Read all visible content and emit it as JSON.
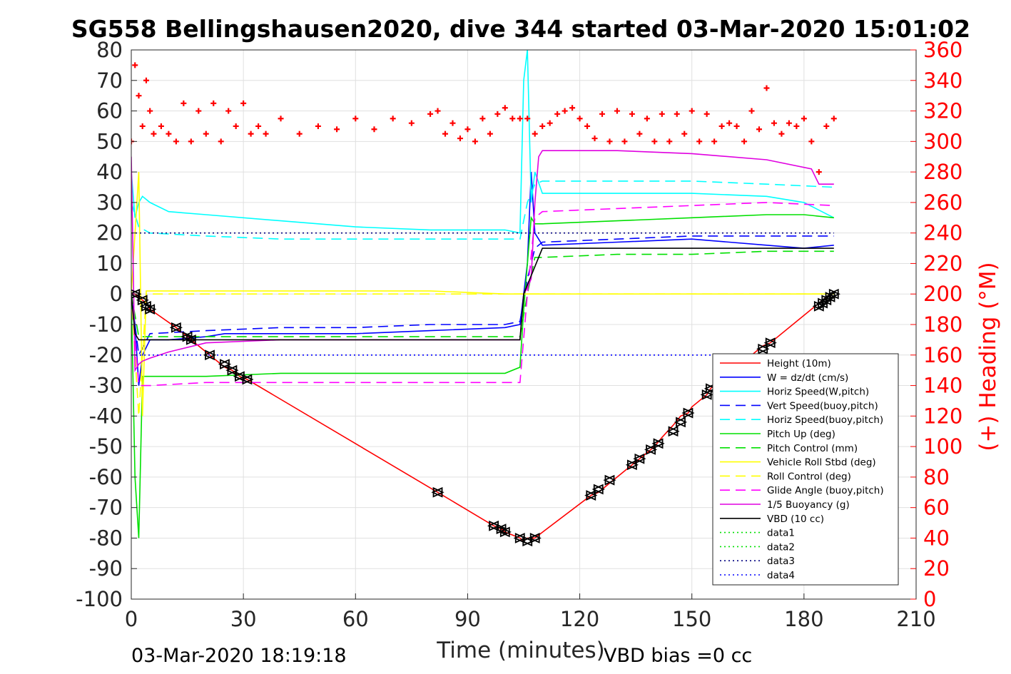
{
  "footer": {
    "timestamp": "03-Mar-2020 18:19:18",
    "vbd_bias": "VBD bias =0 cc"
  },
  "colors": {
    "heading": "#ff0000",
    "height": "#ff0000",
    "w": "#0000ff",
    "horiz_speed": "#00ffff",
    "pitch": "#00e000",
    "roll": "#ffff00",
    "glide": "#ff00ff",
    "buoyancy": "#e000e0",
    "vbd": "#000000",
    "data_green": "#00e000",
    "data_navy": "#000080",
    "data_blue": "#0000ff"
  },
  "chart_data": {
    "type": "line",
    "title": "SG558 Bellingshausen2020, dive 344 started 03-Mar-2020 15:01:02",
    "xlabel": "Time (minutes)",
    "ylabel": "",
    "y2label": "(+) Heading (°M)",
    "xlim": [
      0,
      210
    ],
    "ylim": [
      -100,
      80
    ],
    "y2lim": [
      0,
      360
    ],
    "xticks": [
      0,
      30,
      60,
      90,
      120,
      150,
      180,
      210
    ],
    "yticks": [
      80,
      70,
      60,
      50,
      40,
      30,
      20,
      10,
      0,
      -10,
      -20,
      -30,
      -40,
      -50,
      -60,
      -70,
      -80,
      -90,
      -100
    ],
    "y2ticks": [
      360,
      340,
      320,
      300,
      280,
      260,
      240,
      220,
      200,
      180,
      160,
      140,
      120,
      100,
      80,
      60,
      40,
      20,
      0
    ],
    "grid": true,
    "legend_position": "lower-right",
    "series": [
      {
        "name": "Height (10m)",
        "style": "solid",
        "color": "#ff0000",
        "x": [
          0,
          1,
          2,
          4,
          5,
          12,
          14,
          15,
          16,
          21,
          22,
          25,
          27,
          29,
          31,
          82,
          97,
          99,
          100,
          104,
          105,
          106,
          107,
          108,
          109,
          123,
          125,
          128,
          134,
          136,
          138,
          140,
          142,
          145,
          147,
          149,
          150,
          154,
          155,
          158,
          160,
          163,
          165,
          168,
          169,
          171,
          183,
          184,
          185,
          186,
          187,
          188
        ],
        "y": [
          0,
          0,
          -1,
          -3,
          -5,
          -11,
          -13,
          -14,
          -15,
          -20,
          -21,
          -24,
          -25,
          -27,
          -28,
          -65,
          -76,
          -77,
          -78,
          -80,
          -81,
          -80,
          -80,
          -80,
          -79,
          -66,
          -65,
          -62,
          -56,
          -54,
          -52,
          -50,
          -47,
          -43,
          -40,
          -39,
          -37,
          -33,
          -31,
          -28,
          -26,
          -23,
          -21,
          -18,
          -17,
          -16,
          -4,
          -3,
          -2,
          -1,
          0,
          0
        ]
      },
      {
        "name": "W = dz/dt (cm/s)",
        "style": "solid",
        "color": "#0000ff",
        "x": [
          0,
          1,
          2,
          3,
          5,
          10,
          20,
          25,
          30,
          40,
          60,
          80,
          100,
          104,
          105,
          106,
          107,
          108,
          110,
          130,
          150,
          170,
          180,
          188
        ],
        "y": [
          0,
          -10,
          -30,
          -20,
          -15,
          -15,
          -14,
          -13,
          -13,
          -13,
          -13,
          -12,
          -11,
          -10,
          0,
          10,
          40,
          20,
          16,
          17,
          18,
          16,
          15,
          16
        ]
      },
      {
        "name": "Horiz Speed(W,pitch)",
        "style": "solid",
        "color": "#00ffff",
        "x": [
          0,
          1,
          2,
          3,
          5,
          10,
          20,
          40,
          60,
          80,
          100,
          104,
          105,
          106,
          107,
          108,
          110,
          130,
          150,
          170,
          180,
          188
        ],
        "y": [
          40,
          25,
          30,
          32,
          30,
          27,
          26,
          24,
          22,
          21,
          21,
          20,
          70,
          80,
          30,
          40,
          33,
          33,
          33,
          32,
          30,
          25
        ]
      },
      {
        "name": "Vert Speed(buoy,pitch)",
        "style": "dashed",
        "color": "#0000ff",
        "x": [
          0,
          2,
          5,
          20,
          40,
          60,
          80,
          100,
          104,
          106,
          108,
          110,
          130,
          150,
          170,
          188
        ],
        "y": [
          0,
          -20,
          -13,
          -12,
          -11,
          -11,
          -10,
          -10,
          -9,
          5,
          15,
          17,
          18,
          19,
          19,
          19
        ]
      },
      {
        "name": "Horiz Speed(buoy,pitch)",
        "style": "dashed",
        "color": "#00ffff",
        "x": [
          0,
          2,
          5,
          20,
          40,
          60,
          80,
          100,
          104,
          106,
          108,
          110,
          130,
          150,
          170,
          188
        ],
        "y": [
          30,
          22,
          20,
          19,
          18,
          18,
          18,
          18,
          18,
          30,
          36,
          37,
          37,
          37,
          36,
          35
        ]
      },
      {
        "name": "Pitch Up (deg)",
        "style": "solid",
        "color": "#00e000",
        "x": [
          0,
          1,
          2,
          3,
          5,
          20,
          40,
          60,
          80,
          100,
          104,
          105,
          106,
          107,
          108,
          110,
          130,
          150,
          170,
          180,
          188
        ],
        "y": [
          0,
          -60,
          -80,
          -27,
          -27,
          -27,
          -26,
          -26,
          -26,
          -26,
          -24,
          -5,
          10,
          25,
          23,
          23,
          24,
          25,
          26,
          26,
          25
        ]
      },
      {
        "name": "Pitch Control (mm)",
        "style": "dashed",
        "color": "#00e000",
        "x": [
          0,
          2,
          4,
          20,
          40,
          60,
          80,
          100,
          104,
          106,
          108,
          110,
          130,
          150,
          170,
          188
        ],
        "y": [
          0,
          -14,
          -14,
          -14,
          -14,
          -14,
          -14,
          -14,
          -14,
          0,
          12,
          12,
          13,
          13,
          14,
          14
        ]
      },
      {
        "name": "Vehicle Roll Stbd (deg)",
        "style": "solid",
        "color": "#ffff00",
        "x": [
          0,
          2,
          3,
          4,
          6,
          20,
          40,
          60,
          80,
          100,
          104,
          106,
          108,
          110,
          130,
          150,
          170,
          188
        ],
        "y": [
          0,
          40,
          -40,
          1,
          1,
          1,
          1,
          1,
          1,
          0,
          0,
          0,
          0,
          0,
          0,
          0,
          0,
          0
        ]
      },
      {
        "name": "Roll Control (deg)",
        "style": "dashed",
        "color": "#ffff00",
        "x": [
          0,
          2,
          4,
          6,
          20,
          40,
          60,
          80,
          100,
          104,
          106,
          108,
          110,
          130,
          150,
          170,
          188
        ],
        "y": [
          0,
          -40,
          0,
          0,
          0,
          0,
          0,
          0,
          0,
          0,
          0,
          0,
          0,
          0,
          0,
          0,
          0
        ]
      },
      {
        "name": "Glide Angle (buoy,pitch)",
        "style": "dashed",
        "color": "#ff00ff",
        "x": [
          0,
          2,
          5,
          20,
          40,
          60,
          80,
          100,
          104,
          106,
          108,
          110,
          130,
          150,
          170,
          188
        ],
        "y": [
          0,
          -30,
          -30,
          -29,
          -29,
          -29,
          -29,
          -29,
          -29,
          0,
          25,
          27,
          28,
          29,
          30,
          29
        ]
      },
      {
        "name": "1/5 Buoyancy (g)",
        "style": "solid",
        "color": "#e000e0",
        "x": [
          0,
          1,
          2,
          3,
          5,
          10,
          20,
          40,
          60,
          80,
          100,
          104,
          105,
          106,
          107,
          108,
          109,
          110,
          130,
          150,
          170,
          182,
          184,
          188
        ],
        "y": [
          45,
          -25,
          -23,
          -22,
          -21,
          -19,
          -16,
          -15,
          -15,
          -15,
          -15,
          -15,
          0,
          2,
          5,
          30,
          45,
          47,
          47,
          46,
          44,
          41,
          36,
          36
        ]
      },
      {
        "name": "VBD (10 cc)",
        "style": "solid",
        "color": "#000000",
        "x": [
          0,
          1,
          2,
          3,
          10,
          50,
          100,
          104,
          105,
          110,
          150,
          188
        ],
        "y": [
          0,
          -13,
          -15,
          -15,
          -15,
          -15,
          -15,
          -15,
          0,
          15,
          15,
          15
        ]
      },
      {
        "name": "data1",
        "style": "dotted",
        "color": "#00e000",
        "x": [],
        "y": []
      },
      {
        "name": "data2",
        "style": "dotted",
        "color": "#00e000",
        "x": [],
        "y": []
      },
      {
        "name": "data3",
        "style": "dotted",
        "color": "#000080",
        "x": [
          0,
          188
        ],
        "y": [
          20,
          20
        ]
      },
      {
        "name": "data4",
        "style": "dotted",
        "color": "#0000ff",
        "x": [
          0,
          188
        ],
        "y": [
          -20,
          -20
        ]
      }
    ],
    "heading_series": {
      "name": "(+) Heading (°M)",
      "marker": "+",
      "color": "#ff0000",
      "axis": "right",
      "x": [
        0,
        1,
        2,
        3,
        4,
        5,
        6,
        8,
        10,
        12,
        14,
        16,
        18,
        20,
        22,
        24,
        26,
        28,
        30,
        32,
        34,
        36,
        40,
        45,
        50,
        55,
        60,
        65,
        70,
        75,
        80,
        82,
        84,
        86,
        88,
        90,
        92,
        94,
        96,
        98,
        100,
        102,
        104,
        106,
        108,
        110,
        112,
        114,
        116,
        118,
        120,
        122,
        124,
        126,
        128,
        130,
        132,
        134,
        136,
        138,
        140,
        142,
        144,
        146,
        148,
        150,
        152,
        154,
        156,
        158,
        160,
        162,
        164,
        166,
        168,
        170,
        172,
        174,
        176,
        178,
        180,
        182,
        184,
        186,
        188
      ],
      "y": [
        300,
        350,
        330,
        310,
        340,
        320,
        305,
        310,
        305,
        300,
        325,
        300,
        320,
        305,
        325,
        300,
        320,
        310,
        325,
        305,
        310,
        305,
        315,
        305,
        310,
        308,
        315,
        308,
        315,
        312,
        318,
        320,
        305,
        312,
        302,
        308,
        300,
        315,
        305,
        318,
        322,
        315,
        315,
        315,
        305,
        310,
        312,
        318,
        320,
        322,
        315,
        310,
        302,
        318,
        300,
        320,
        300,
        318,
        305,
        315,
        300,
        318,
        300,
        318,
        305,
        320,
        300,
        318,
        300,
        310,
        312,
        310,
        300,
        320,
        308,
        335,
        312,
        305,
        312,
        310,
        315,
        300,
        280,
        310,
        315
      ]
    },
    "vbd_markers": {
      "x": [
        1,
        3,
        4,
        5,
        12,
        15,
        16,
        21,
        25,
        27,
        29,
        31,
        82,
        97,
        99,
        100,
        104,
        106,
        108,
        123,
        125,
        128,
        134,
        136,
        139,
        141,
        145,
        147,
        149,
        154,
        155,
        169,
        171,
        184,
        185,
        186,
        187,
        188
      ],
      "y": [
        0,
        -2,
        -4,
        -5,
        -11,
        -14,
        -15,
        -20,
        -23,
        -25,
        -27,
        -28,
        -65,
        -76,
        -77,
        -78,
        -80,
        -81,
        -80,
        -66,
        -64,
        -61,
        -56,
        -54,
        -51,
        -49,
        -45,
        -42,
        -39,
        -33,
        -31,
        -18,
        -16,
        -4,
        -3,
        -2,
        -1,
        0
      ]
    }
  }
}
